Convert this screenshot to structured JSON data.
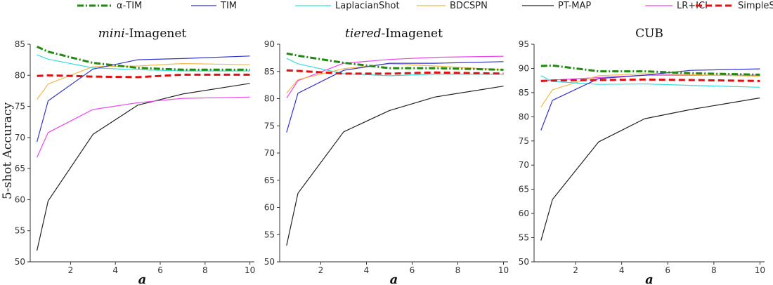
{
  "figure": {
    "ylabel": "5-shot Accuracy"
  },
  "legend": [
    {
      "name": "α-TIM",
      "color": "#1f8a0f",
      "dash": "dashdot",
      "width": 3
    },
    {
      "name": "TIM",
      "color": "#3333cc",
      "dash": "solid",
      "width": 1.2
    },
    {
      "name": "LaplacianShot",
      "color": "#33dddd",
      "dash": "solid",
      "width": 1.2
    },
    {
      "name": "BDCSPN",
      "color": "#f2b84b",
      "dash": "solid",
      "width": 1.2
    },
    {
      "name": "PT-MAP",
      "color": "#222222",
      "dash": "solid",
      "width": 1.2
    },
    {
      "name": "LR+ICI",
      "color": "#ee44ee",
      "dash": "solid",
      "width": 1.2
    },
    {
      "name": "SimpleShot",
      "color": "#dd1111",
      "dash": "dashed",
      "width": 3
    }
  ],
  "chart_data": [
    {
      "type": "line",
      "title_italic": "mini",
      "title_rest": "-Imagenet",
      "xlabel": "a",
      "ylabel": "5-shot Accuracy",
      "xlim": [
        0.2,
        10.2
      ],
      "ylim": [
        50,
        85
      ],
      "xticks": [
        2,
        4,
        6,
        8,
        10
      ],
      "yticks": [
        50,
        55,
        60,
        65,
        70,
        75,
        80,
        85
      ],
      "x": [
        0.5,
        1,
        3,
        5,
        7,
        10
      ],
      "series": [
        {
          "name": "α-TIM",
          "values": [
            84.6,
            83.8,
            82.0,
            81.2,
            80.9,
            80.9
          ]
        },
        {
          "name": "TIM",
          "values": [
            69.3,
            75.9,
            81.0,
            82.5,
            82.7,
            83.1
          ]
        },
        {
          "name": "LaplacianShot",
          "values": [
            83.3,
            82.6,
            81.2,
            80.9,
            80.7,
            80.7
          ]
        },
        {
          "name": "BDCSPN",
          "values": [
            76.1,
            78.6,
            81.4,
            81.5,
            81.9,
            81.7
          ]
        },
        {
          "name": "PT-MAP",
          "values": [
            51.8,
            59.8,
            70.5,
            75.2,
            77.0,
            78.7
          ]
        },
        {
          "name": "LR+ICI",
          "values": [
            66.8,
            70.8,
            74.5,
            75.6,
            76.3,
            76.5
          ]
        },
        {
          "name": "SimpleShot",
          "values": [
            79.9,
            80.0,
            79.8,
            79.7,
            80.1,
            80.1
          ]
        }
      ]
    },
    {
      "type": "line",
      "title_italic": "tiered",
      "title_rest": "-Imagenet",
      "xlabel": "a",
      "ylabel": "",
      "xlim": [
        0.2,
        10.2
      ],
      "ylim": [
        50,
        90
      ],
      "xticks": [
        2,
        4,
        6,
        8,
        10
      ],
      "yticks": [
        50,
        55,
        60,
        65,
        70,
        75,
        80,
        85,
        90
      ],
      "x": [
        0.5,
        1,
        3,
        5,
        7,
        10
      ],
      "series": [
        {
          "name": "α-TIM",
          "values": [
            88.3,
            87.9,
            86.6,
            85.6,
            85.6,
            85.3
          ]
        },
        {
          "name": "TIM",
          "values": [
            73.8,
            81.0,
            85.2,
            86.5,
            86.5,
            86.8
          ]
        },
        {
          "name": "LaplacianShot",
          "values": [
            87.4,
            86.4,
            84.6,
            84.2,
            84.5,
            84.5
          ]
        },
        {
          "name": "BDCSPN",
          "values": [
            81.0,
            83.5,
            85.5,
            86.4,
            86.0,
            85.3
          ]
        },
        {
          "name": "PT-MAP",
          "values": [
            53.0,
            62.6,
            73.9,
            77.8,
            80.3,
            82.3
          ]
        },
        {
          "name": "LR+ICI",
          "values": [
            80.1,
            83.3,
            86.5,
            87.2,
            87.6,
            87.8
          ]
        },
        {
          "name": "SimpleShot",
          "values": [
            85.2,
            85.1,
            84.6,
            84.6,
            84.8,
            84.6
          ]
        }
      ]
    },
    {
      "type": "line",
      "title_italic": "",
      "title_rest": "CUB",
      "xlabel": "a",
      "ylabel": "",
      "xlim": [
        0.2,
        10.2
      ],
      "ylim": [
        50,
        95
      ],
      "xticks": [
        2,
        4,
        6,
        8,
        10
      ],
      "yticks": [
        50,
        55,
        60,
        65,
        70,
        75,
        80,
        85,
        90,
        95
      ],
      "x": [
        0.5,
        1,
        3,
        5,
        7,
        10
      ],
      "series": [
        {
          "name": "α-TIM",
          "values": [
            90.5,
            90.6,
            89.4,
            89.4,
            89.0,
            88.7
          ]
        },
        {
          "name": "TIM",
          "values": [
            77.2,
            83.4,
            87.9,
            88.6,
            89.6,
            89.9
          ]
        },
        {
          "name": "LaplacianShot",
          "values": [
            88.5,
            87.3,
            86.7,
            86.8,
            86.5,
            86.1
          ]
        },
        {
          "name": "BDCSPN",
          "values": [
            82.0,
            85.6,
            88.5,
            88.9,
            88.7,
            88.4
          ]
        },
        {
          "name": "PT-MAP",
          "values": [
            54.4,
            62.9,
            74.8,
            79.6,
            81.5,
            83.9
          ]
        },
        {
          "name": "LR+ICI",
          "values": [
            87.3,
            87.6,
            88.1,
            88.6,
            88.6,
            88.6
          ]
        },
        {
          "name": "SimpleShot",
          "values": [
            87.4,
            87.5,
            87.6,
            87.7,
            87.6,
            87.4
          ]
        }
      ]
    }
  ]
}
